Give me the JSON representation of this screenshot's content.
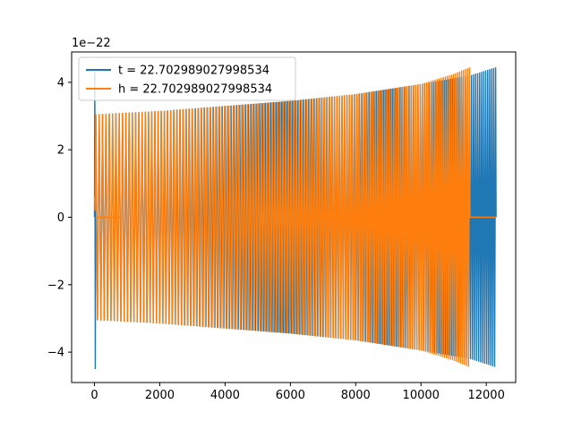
{
  "chart_data": {
    "type": "line",
    "title": "",
    "xlabel": "",
    "ylabel": "",
    "xlim": [
      -700,
      12900
    ],
    "ylim": [
      -4.9,
      4.9
    ],
    "y_offset_label": "1e−22",
    "x_ticks": [
      0,
      2000,
      4000,
      6000,
      8000,
      10000,
      12000
    ],
    "x_tick_labels": [
      "0",
      "2000",
      "4000",
      "6000",
      "8000",
      "10000",
      "12000"
    ],
    "y_ticks": [
      -4,
      -2,
      0,
      2,
      4
    ],
    "y_tick_labels": [
      "−4",
      "−2",
      "0",
      "2",
      "4"
    ],
    "grid": false,
    "legend_position": "upper-left",
    "series": [
      {
        "name": "t = 22.702989027998534",
        "color": "#1f77b4",
        "description_points": {
          "x_start": 0,
          "x_end": 12300,
          "spike_at_start": [
            4.3,
            -4.5
          ],
          "envelope_x": [
            0,
            1000,
            2000,
            4000,
            6000,
            8000,
            10000,
            11500,
            12300
          ],
          "envelope_amp": [
            3.05,
            3.1,
            3.15,
            3.3,
            3.45,
            3.65,
            3.95,
            4.2,
            4.45
          ],
          "zero_flat_after": 12300
        }
      },
      {
        "name": "h = 22.702989027998534",
        "color": "#ff7f0e",
        "description_points": {
          "x_start": 0,
          "x_end": 11500,
          "envelope_x": [
            0,
            1000,
            2000,
            4000,
            6000,
            8000,
            10000,
            11000,
            11500
          ],
          "envelope_amp": [
            3.05,
            3.1,
            3.15,
            3.3,
            3.45,
            3.65,
            3.95,
            4.25,
            4.45
          ],
          "zero_flat_from": 11500,
          "zero_flat_to": 12300
        }
      }
    ]
  }
}
